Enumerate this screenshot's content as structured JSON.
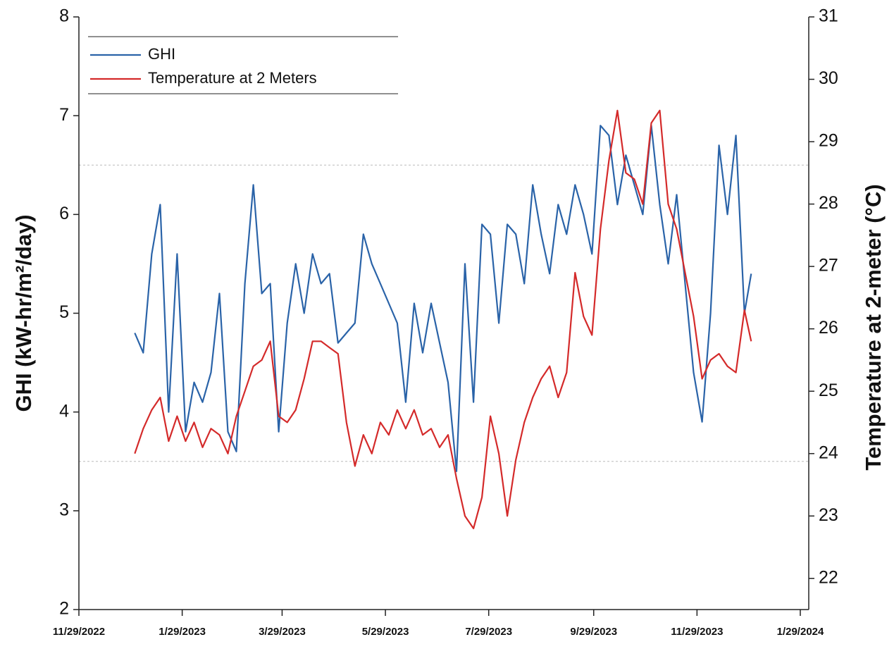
{
  "chart_data": {
    "type": "line",
    "y_label": "GHI (kW-hr/m²/day)",
    "y2_label": "Temperature at 2-meter (°C)",
    "x": [
      "2023-01-01",
      "2023-01-06",
      "2023-01-11",
      "2023-01-16",
      "2023-01-21",
      "2023-01-26",
      "2023-01-31",
      "2023-02-05",
      "2023-02-10",
      "2023-02-15",
      "2023-02-20",
      "2023-02-25",
      "2023-03-02",
      "2023-03-07",
      "2023-03-12",
      "2023-03-17",
      "2023-03-22",
      "2023-03-27",
      "2023-04-01",
      "2023-04-06",
      "2023-04-11",
      "2023-04-16",
      "2023-04-21",
      "2023-04-26",
      "2023-05-01",
      "2023-05-06",
      "2023-05-11",
      "2023-05-16",
      "2023-05-21",
      "2023-05-26",
      "2023-05-31",
      "2023-06-05",
      "2023-06-10",
      "2023-06-15",
      "2023-06-20",
      "2023-06-25",
      "2023-06-30",
      "2023-07-05",
      "2023-07-10",
      "2023-07-15",
      "2023-07-20",
      "2023-07-25",
      "2023-07-30",
      "2023-08-04",
      "2023-08-09",
      "2023-08-14",
      "2023-08-19",
      "2023-08-24",
      "2023-08-29",
      "2023-09-03",
      "2023-09-08",
      "2023-09-13",
      "2023-09-18",
      "2023-09-23",
      "2023-09-28",
      "2023-10-03",
      "2023-10-08",
      "2023-10-13",
      "2023-10-18",
      "2023-10-23",
      "2023-10-28",
      "2023-11-02",
      "2023-11-07",
      "2023-11-12",
      "2023-11-17",
      "2023-11-22",
      "2023-11-27",
      "2023-12-02",
      "2023-12-07",
      "2023-12-12",
      "2023-12-17",
      "2023-12-22",
      "2023-12-27",
      "2023-12-31"
    ],
    "series": [
      {
        "name": "GHI",
        "color": "#2a63a8",
        "axis": "y",
        "values": [
          4.8,
          4.6,
          5.6,
          6.1,
          4.0,
          5.6,
          3.8,
          4.3,
          4.1,
          4.4,
          5.2,
          3.8,
          3.6,
          5.3,
          6.3,
          5.2,
          5.3,
          3.8,
          4.9,
          5.5,
          5.0,
          5.6,
          5.3,
          5.4,
          4.7,
          4.8,
          4.9,
          5.8,
          5.5,
          5.3,
          5.1,
          4.9,
          4.1,
          5.1,
          4.6,
          5.1,
          4.7,
          4.3,
          3.4,
          5.5,
          4.1,
          5.9,
          5.8,
          4.9,
          5.9,
          5.8,
          5.3,
          6.3,
          5.8,
          5.4,
          6.1,
          5.8,
          6.3,
          6.0,
          5.6,
          6.9,
          6.8,
          6.1,
          6.6,
          6.3,
          6.0,
          6.9,
          6.1,
          5.5,
          6.2,
          5.3,
          4.4,
          3.9,
          5.0,
          6.7,
          6.0,
          6.8,
          5.0,
          5.4
        ]
      },
      {
        "name": "Temperature at 2 Meters",
        "color": "#d42a2a",
        "axis": "y2",
        "values": [
          24.0,
          24.4,
          24.7,
          24.9,
          24.2,
          24.6,
          24.2,
          24.5,
          24.1,
          24.4,
          24.3,
          24.0,
          24.6,
          25.0,
          25.4,
          25.5,
          25.8,
          24.6,
          24.5,
          24.7,
          25.2,
          25.8,
          25.8,
          25.7,
          25.6,
          24.5,
          23.8,
          24.3,
          24.0,
          24.5,
          24.3,
          24.7,
          24.4,
          24.7,
          24.3,
          24.4,
          24.1,
          24.3,
          23.6,
          23.0,
          22.8,
          23.3,
          24.6,
          24.0,
          23.0,
          23.9,
          24.5,
          24.9,
          25.2,
          25.4,
          24.9,
          25.3,
          26.9,
          26.2,
          25.9,
          27.6,
          28.7,
          29.5,
          28.5,
          28.4,
          28.0,
          29.3,
          29.5,
          28.0,
          27.6,
          26.9,
          26.2,
          25.2,
          25.5,
          25.6,
          25.4,
          25.3,
          26.3,
          25.8
        ]
      }
    ],
    "xlim": [
      "2022-11-29",
      "2024-02-03"
    ],
    "xticks": [
      {
        "value": "2022-11-29",
        "label": "11/29/2022"
      },
      {
        "value": "2023-01-29",
        "label": "1/29/2023"
      },
      {
        "value": "2023-03-29",
        "label": "3/29/2023"
      },
      {
        "value": "2023-05-29",
        "label": "5/29/2023"
      },
      {
        "value": "2023-07-29",
        "label": "7/29/2023"
      },
      {
        "value": "2023-09-29",
        "label": "9/29/2023"
      },
      {
        "value": "2023-11-29",
        "label": "11/29/2023"
      },
      {
        "value": "2024-01-29",
        "label": "1/29/2024"
      }
    ],
    "ylim": [
      2,
      8
    ],
    "yticks": [
      2,
      3,
      4,
      5,
      6,
      7,
      8
    ],
    "y2lim": [
      21.5,
      31
    ],
    "y2ticks": [
      22,
      23,
      24,
      25,
      26,
      27,
      28,
      29,
      30,
      31
    ],
    "hlines": [
      3.5,
      6.5
    ],
    "legend": "upper left"
  }
}
